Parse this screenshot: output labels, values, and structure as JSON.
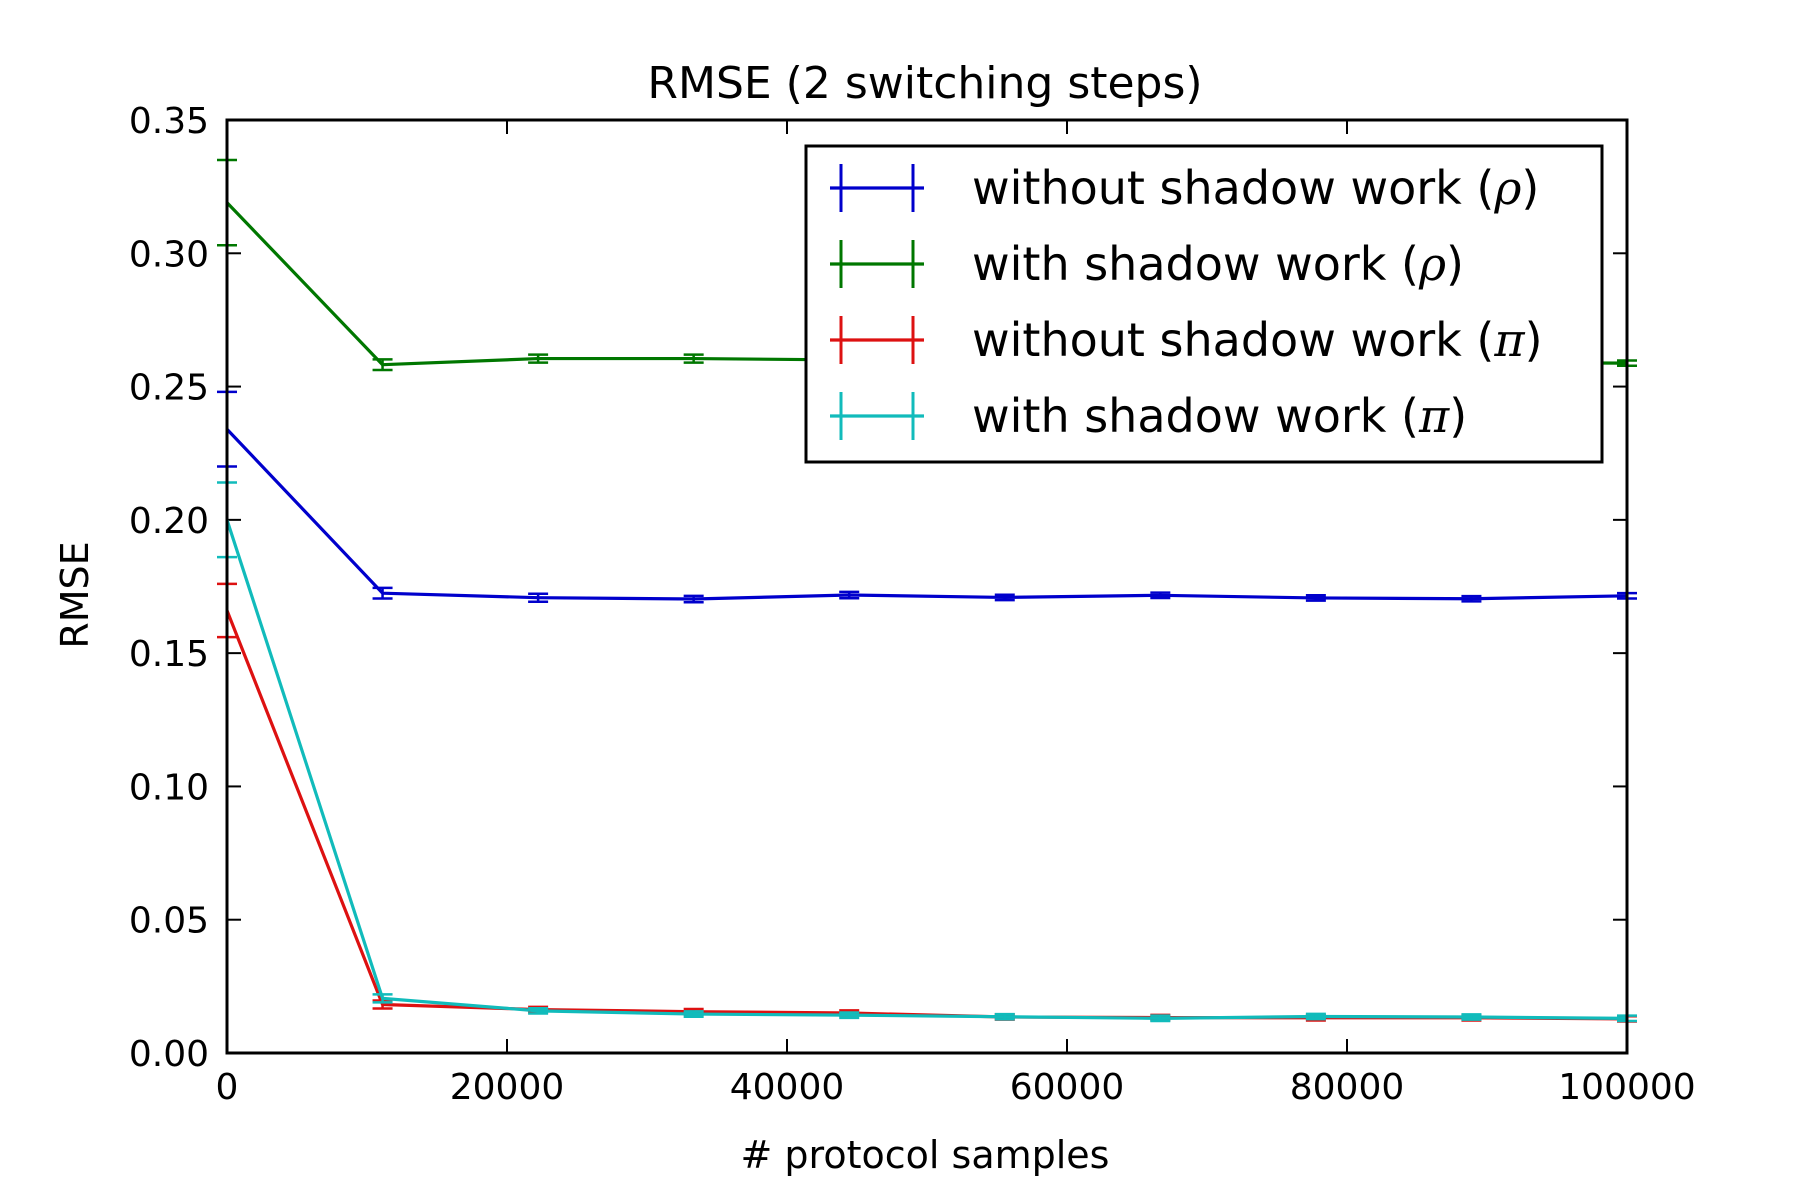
{
  "chart_data": {
    "type": "line",
    "title": "RMSE (2 switching steps)",
    "xlabel": "# protocol samples",
    "ylabel": "RMSE",
    "xlim": [
      0,
      100000
    ],
    "ylim": [
      0,
      0.35
    ],
    "xticks": [
      0,
      20000,
      40000,
      60000,
      80000,
      100000
    ],
    "xtick_labels": [
      "0",
      "20000",
      "40000",
      "60000",
      "80000",
      "100000"
    ],
    "yticks": [
      0,
      0.05,
      0.1,
      0.15,
      0.2,
      0.25,
      0.3,
      0.35
    ],
    "ytick_labels": [
      "0.00",
      "0.05",
      "0.10",
      "0.15",
      "0.20",
      "0.25",
      "0.30",
      "0.35"
    ],
    "grid": false,
    "legend_position": "top-right",
    "x": [
      0,
      11111,
      22222,
      33333,
      44444,
      55555,
      66666,
      77777,
      88888,
      100000
    ],
    "series": [
      {
        "name": "without shadow work",
        "symbol": "ρ",
        "color": "#0000cc",
        "values": [
          0.234,
          0.1725,
          0.1708,
          0.1703,
          0.1718,
          0.1709,
          0.1717,
          0.1707,
          0.1704,
          0.1715
        ],
        "errors": [
          0.014,
          0.002,
          0.0015,
          0.0012,
          0.0012,
          0.001,
          0.001,
          0.001,
          0.001,
          0.001
        ]
      },
      {
        "name": "with shadow work",
        "symbol": "ρ",
        "color": "#007700",
        "values": [
          0.319,
          0.2582,
          0.2605,
          0.2605,
          0.26,
          0.2595,
          0.259,
          0.259,
          0.259,
          0.2588
        ],
        "errors": [
          0.016,
          0.002,
          0.0015,
          0.0015,
          0.0012,
          0.0012,
          0.001,
          0.001,
          0.001,
          0.001
        ]
      },
      {
        "name": "without shadow work",
        "symbol": "π",
        "color": "#dd1111",
        "values": [
          0.166,
          0.0182,
          0.0163,
          0.0155,
          0.015,
          0.0135,
          0.0133,
          0.0132,
          0.0132,
          0.0128
        ],
        "errors": [
          0.01,
          0.0015,
          0.001,
          0.001,
          0.001,
          0.001,
          0.001,
          0.001,
          0.001,
          0.001
        ]
      },
      {
        "name": "with shadow work",
        "symbol": "π",
        "color": "#11bbbb",
        "values": [
          0.2,
          0.0205,
          0.0158,
          0.0146,
          0.0142,
          0.0136,
          0.013,
          0.0137,
          0.0135,
          0.013
        ],
        "errors": [
          0.014,
          0.0015,
          0.001,
          0.001,
          0.001,
          0.001,
          0.001,
          0.001,
          0.001,
          0.001
        ]
      }
    ]
  }
}
